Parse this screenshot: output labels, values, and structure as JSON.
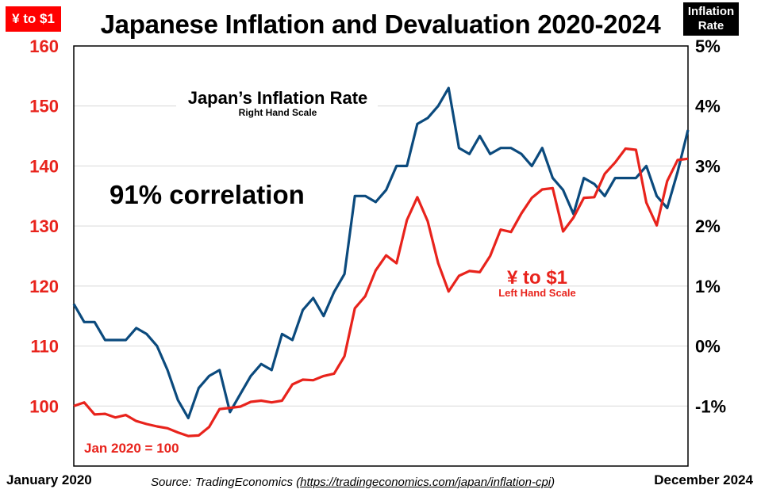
{
  "badges": {
    "left": "¥ to $1",
    "right_line1": "Inflation",
    "right_line2": "Rate"
  },
  "footer": {
    "start_label": "January 2020",
    "end_label": "December 2024",
    "source_prefix": "Source: TradingEconomics (",
    "source_url": "https://tradingeconomics.com/japan/inflation-cpi",
    "source_suffix": ")"
  },
  "colors": {
    "inflation": "#0b4a7d",
    "yen": "#e8231c",
    "grid": "#d9d9d9"
  },
  "chart_data": {
    "type": "line",
    "title": "Japanese Inflation and Devaluation 2020-2024",
    "x_start": "January 2020",
    "x_end": "December 2024",
    "n_points": 60,
    "left_axis": {
      "label": "¥ to $1",
      "min": 90,
      "max": 160,
      "ticks": [
        100,
        110,
        120,
        130,
        140,
        150,
        160
      ]
    },
    "right_axis": {
      "label": "Inflation Rate",
      "min": -2.0,
      "max": 5.0,
      "ticks": [
        -1,
        0,
        1,
        2,
        3,
        4,
        5
      ],
      "tick_labels": [
        "-1%",
        "0%",
        "1%",
        "2%",
        "3%",
        "4%",
        "5%"
      ]
    },
    "grid": true,
    "annotations": {
      "correlation": "91% correlation",
      "inflation_label": "Japan’s Inflation Rate",
      "inflation_sub": "Right Hand Scale",
      "yen_label": "¥ to $1",
      "yen_sub": "Left Hand Scale",
      "base_note": "Jan 2020 = 100"
    },
    "series": [
      {
        "name": "Japan’s Inflation Rate",
        "axis": "right",
        "values": [
          0.7,
          0.4,
          0.4,
          0.1,
          0.1,
          0.1,
          0.3,
          0.2,
          0.0,
          -0.4,
          -0.9,
          -1.2,
          -0.7,
          -0.5,
          -0.4,
          -1.1,
          -0.8,
          -0.5,
          -0.3,
          -0.4,
          0.2,
          0.1,
          0.6,
          0.8,
          0.5,
          0.9,
          1.2,
          2.5,
          2.5,
          2.4,
          2.6,
          3.0,
          3.0,
          3.7,
          3.8,
          4.0,
          4.3,
          3.3,
          3.2,
          3.5,
          3.2,
          3.3,
          3.3,
          3.2,
          3.0,
          3.3,
          2.8,
          2.6,
          2.2,
          2.8,
          2.7,
          2.5,
          2.8,
          2.8,
          2.8,
          3.0,
          2.5,
          2.3,
          2.9,
          3.6
        ]
      },
      {
        "name": "¥ to $1",
        "axis": "left",
        "values": [
          100.0,
          100.6,
          98.6,
          98.7,
          98.1,
          98.5,
          97.5,
          97.0,
          96.6,
          96.3,
          95.6,
          95.0,
          95.1,
          96.5,
          99.5,
          99.7,
          99.9,
          100.7,
          100.9,
          100.6,
          100.9,
          103.6,
          104.4,
          104.3,
          105.0,
          105.4,
          108.3,
          116.3,
          118.3,
          122.6,
          125.1,
          123.8,
          131.0,
          134.8,
          130.8,
          123.8,
          119.1,
          121.7,
          122.5,
          122.3,
          125.0,
          129.4,
          129.0,
          132.1,
          134.7,
          136.1,
          136.3,
          129.1,
          131.4,
          134.7,
          134.8,
          138.7,
          140.6,
          142.9,
          142.7,
          133.9,
          130.1,
          137.5,
          141.0,
          141.2
        ]
      }
    ]
  }
}
